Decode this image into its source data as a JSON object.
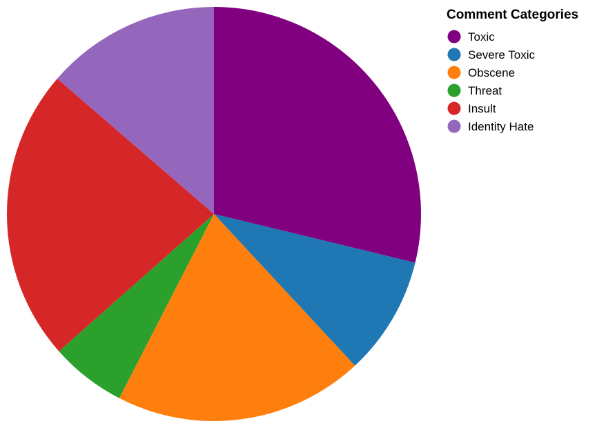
{
  "chart_data": {
    "type": "pie",
    "legend_title": "Comment Categories",
    "legend_position": "top-right",
    "categories": [
      "Toxic",
      "Severe Toxic",
      "Obscene",
      "Threat",
      "Insult",
      "Identity Hate"
    ],
    "values": [
      29.7,
      9.6,
      20.1,
      6.1,
      23.6,
      14.1
    ],
    "colors": [
      "#800080",
      "#1f77b4",
      "#ff7f0e",
      "#2ca02c",
      "#d62728",
      "#9467bd"
    ]
  }
}
